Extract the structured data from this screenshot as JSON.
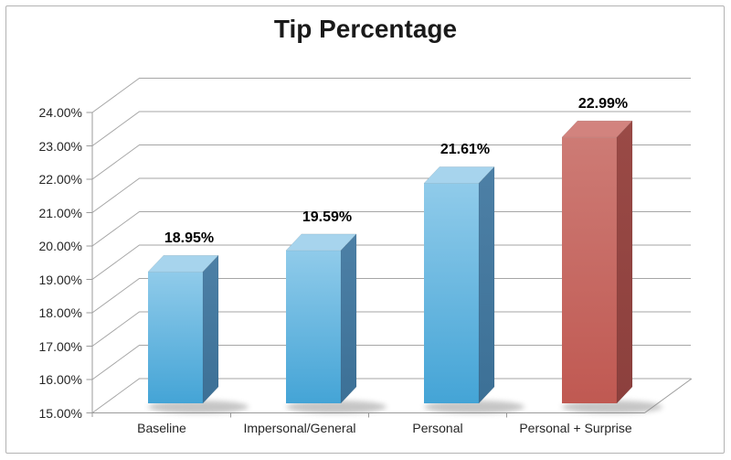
{
  "chart_data": {
    "type": "bar",
    "variant": "3d-column",
    "title": "Tip Percentage",
    "categories": [
      "Baseline",
      "Impersonal/General",
      "Personal",
      "Personal + Surprise"
    ],
    "values": [
      18.95,
      19.59,
      21.61,
      22.99
    ],
    "data_labels": [
      "18.95%",
      "19.59%",
      "21.61%",
      "22.99%"
    ],
    "bar_color_keys": [
      "blue",
      "blue",
      "blue",
      "red"
    ],
    "xlabel": "",
    "ylabel": "",
    "ylim": [
      15,
      24
    ],
    "y_ticks": [
      {
        "value": 15,
        "label": "15.00%"
      },
      {
        "value": 16,
        "label": "16.00%"
      },
      {
        "value": 17,
        "label": "17.00%"
      },
      {
        "value": 18,
        "label": "18.00%"
      },
      {
        "value": 19,
        "label": "19.00%"
      },
      {
        "value": 20,
        "label": "20.00%"
      },
      {
        "value": 21,
        "label": "21.00%"
      },
      {
        "value": 22,
        "label": "22.00%"
      },
      {
        "value": 23,
        "label": "23.00%"
      },
      {
        "value": 24,
        "label": "24.00%"
      }
    ],
    "grid": true,
    "legend": "none",
    "background": "#ffffff"
  },
  "colors": {
    "blue": {
      "front_top": "#90cbea",
      "front_bottom": "#44a4d6",
      "top": "#a7d4ed",
      "side_top": "#4d80a6",
      "side_bottom": "#3c7096"
    },
    "red": {
      "front_top": "#cd7b75",
      "front_bottom": "#c05952",
      "top": "#d2837e",
      "side_top": "#9a4a46",
      "side_bottom": "#8c403d"
    },
    "gridline": "#a6a6a6",
    "axis": "#9b9b9b",
    "shadow": "#808080",
    "border": "#b3b3b3",
    "title_text": "#1a1a1a",
    "axis_text": "#262626",
    "value_text": "#000000"
  }
}
